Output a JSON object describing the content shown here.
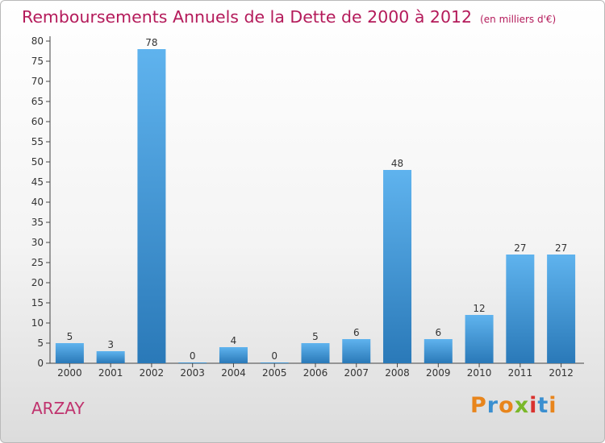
{
  "header": {
    "title": "Remboursements Annuels de la Dette de 2000 à 2012",
    "subtitle": "(en milliers d'€)"
  },
  "chart_data": {
    "type": "bar",
    "title": "Remboursements Annuels de la Dette de 2000 à 2012",
    "subtitle": "(en milliers d'€)",
    "xlabel": "",
    "ylabel": "",
    "categories": [
      "2000",
      "2001",
      "2002",
      "2003",
      "2004",
      "2005",
      "2006",
      "2007",
      "2008",
      "2009",
      "2010",
      "2011",
      "2012"
    ],
    "values": [
      5,
      3,
      78,
      0,
      4,
      0,
      5,
      6,
      48,
      6,
      12,
      27,
      27
    ],
    "value_labels": [
      "5",
      "3",
      "78",
      "0",
      "4",
      "0",
      "5",
      "6",
      "48",
      "6",
      "12",
      "27",
      "27"
    ],
    "ylim": [
      0,
      80
    ],
    "yticks": [
      "0",
      "5",
      "10",
      "15",
      "20",
      "25",
      "30",
      "35",
      "40",
      "45",
      "50",
      "55",
      "60",
      "65",
      "70",
      "75",
      "80"
    ],
    "grid": false,
    "bar_color_top": "#5fb3ee",
    "bar_color_bottom": "#2a79b8"
  },
  "footer": {
    "commune": "ARZAY",
    "logo_text": "Proxiti",
    "logo_colors": [
      "#e8851c",
      "#3a8fd0",
      "#e8851c",
      "#7ab829",
      "#d9322e",
      "#3a8fd0",
      "#e8851c"
    ]
  },
  "colors": {
    "title": "#b41a5a",
    "commune": "#c0336e",
    "axis": "#444444"
  }
}
